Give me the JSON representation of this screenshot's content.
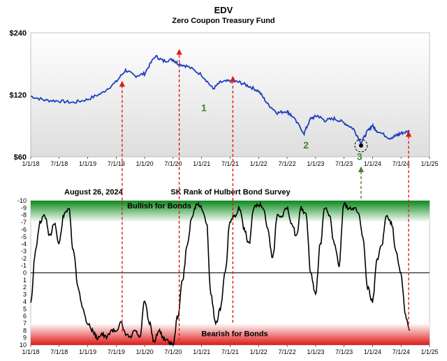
{
  "chart_data": [
    {
      "type": "line",
      "title": "EDV",
      "subtitle": "Zero Coupon Treasury Fund",
      "y_scale": "log",
      "ylim": [
        60,
        240
      ],
      "y_ticks": [
        "$240",
        "$120",
        "$60"
      ],
      "y_tick_values": [
        240,
        120,
        60
      ],
      "x_ticks": [
        "1/1/18",
        "7/1/18",
        "1/1/19",
        "7/1/19",
        "1/1/20",
        "7/1/20",
        "1/1/21",
        "7/1/21",
        "1/1/22",
        "7/1/22",
        "1/1/23",
        "7/1/23",
        "1/1/24",
        "7/1/24",
        "1/1/25"
      ],
      "series": [
        {
          "color": "#1f3fbf",
          "x": [
            "2018-01-01",
            "2018-04-01",
            "2018-07-01",
            "2018-10-01",
            "2019-01-01",
            "2019-04-01",
            "2019-07-01",
            "2019-09-01",
            "2019-11-01",
            "2020-01-01",
            "2020-03-10",
            "2020-05-01",
            "2020-07-01",
            "2020-08-01",
            "2020-10-01",
            "2021-01-01",
            "2021-03-15",
            "2021-05-01",
            "2021-07-01",
            "2021-09-01",
            "2021-11-01",
            "2022-01-01",
            "2022-03-01",
            "2022-05-01",
            "2022-07-01",
            "2022-08-01",
            "2022-10-20",
            "2022-12-01",
            "2023-01-15",
            "2023-03-01",
            "2023-05-01",
            "2023-07-01",
            "2023-09-01",
            "2023-10-20",
            "2023-12-01",
            "2023-12-31",
            "2024-02-01",
            "2024-04-20",
            "2024-06-01",
            "2024-07-01",
            "2024-08-26"
          ],
          "y": [
            118,
            113,
            112,
            110,
            114,
            122,
            138,
            158,
            148,
            152,
            185,
            175,
            178,
            170,
            165,
            150,
            128,
            138,
            140,
            138,
            132,
            125,
            108,
            98,
            100,
            95,
            78,
            92,
            95,
            90,
            92,
            88,
            82,
            70,
            80,
            85,
            80,
            74,
            76,
            78,
            80
          ]
        }
      ],
      "annotations": [
        {
          "text": "1",
          "x": "2021-01-15",
          "y": 100
        },
        {
          "text": "2",
          "x": "2022-11-01",
          "y": 66
        },
        {
          "text": "3",
          "x": "2023-10-10",
          "y": 58
        }
      ],
      "highlight_point": {
        "x": "2023-10-20",
        "y": 68
      }
    },
    {
      "type": "line",
      "title": "SK Rank of Hulbert Bond Survey",
      "date_label": "August 26, 2024",
      "ylim": [
        -10,
        10
      ],
      "y_inverted": true,
      "y_ticks": [
        "-10",
        "-9",
        "-8",
        "-7",
        "-6",
        "-5",
        "-4",
        "-3",
        "-2",
        "-1",
        "0",
        "1",
        "2",
        "3",
        "4",
        "5",
        "6",
        "7",
        "8",
        "9",
        "10"
      ],
      "x_ticks": [
        "1/1/18",
        "7/1/18",
        "1/1/19",
        "7/1/19",
        "1/1/20",
        "7/1/20",
        "1/1/21",
        "7/1/21",
        "1/1/22",
        "7/1/22",
        "1/1/23",
        "7/1/23",
        "1/1/24",
        "7/1/24",
        "1/1/25"
      ],
      "zones": [
        {
          "label": "Bullish for Bonds",
          "from": -10,
          "to": -7,
          "color": "#0a8a1a"
        },
        {
          "label": "Bearish for Bonds",
          "from": 7,
          "to": 10,
          "color": "#e01818"
        }
      ],
      "series": [
        {
          "color": "#000000",
          "x": [
            "2018-01-01",
            "2018-02-01",
            "2018-03-01",
            "2018-04-01",
            "2018-05-01",
            "2018-06-01",
            "2018-07-01",
            "2018-08-01",
            "2018-09-01",
            "2018-10-01",
            "2018-11-01",
            "2018-12-01",
            "2019-01-01",
            "2019-02-01",
            "2019-03-01",
            "2019-04-01",
            "2019-05-01",
            "2019-06-01",
            "2019-07-01",
            "2019-08-01",
            "2019-09-01",
            "2019-10-01",
            "2019-11-01",
            "2019-12-01",
            "2020-01-01",
            "2020-02-01",
            "2020-03-01",
            "2020-04-01",
            "2020-05-01",
            "2020-06-01",
            "2020-07-01",
            "2020-08-01",
            "2020-09-01",
            "2020-10-01",
            "2020-11-01",
            "2020-12-01",
            "2021-01-01",
            "2021-02-01",
            "2021-03-01",
            "2021-04-01",
            "2021-05-01",
            "2021-06-01",
            "2021-07-01",
            "2021-08-01",
            "2021-09-01",
            "2021-10-01",
            "2021-11-01",
            "2021-12-01",
            "2022-01-01",
            "2022-02-01",
            "2022-03-01",
            "2022-04-01",
            "2022-05-01",
            "2022-06-01",
            "2022-07-01",
            "2022-08-01",
            "2022-09-01",
            "2022-10-01",
            "2022-11-01",
            "2022-12-01",
            "2023-01-01",
            "2023-02-01",
            "2023-03-01",
            "2023-04-01",
            "2023-05-01",
            "2023-06-01",
            "2023-07-01",
            "2023-08-01",
            "2023-09-01",
            "2023-10-01",
            "2023-11-01",
            "2023-12-01",
            "2024-01-01",
            "2024-02-01",
            "2024-03-01",
            "2024-04-01",
            "2024-05-01",
            "2024-06-01",
            "2024-07-01",
            "2024-08-01",
            "2024-08-26"
          ],
          "y": [
            4,
            -3,
            -7,
            -8,
            -5,
            -7,
            -4,
            -8,
            -9,
            -3,
            2,
            5,
            7,
            8,
            9,
            8.5,
            9,
            8,
            8,
            7,
            8.5,
            9,
            8,
            9,
            4,
            7,
            9.5,
            8,
            9,
            9.5,
            10,
            6,
            1,
            -4,
            -8,
            -9.5,
            -9,
            -7,
            3,
            7,
            5,
            0,
            -7,
            -8,
            -9,
            -6,
            -4,
            -9,
            -9.5,
            -9,
            -6,
            -2,
            -8,
            -8,
            -9,
            -7,
            -5,
            -9,
            -8,
            0,
            3,
            -4,
            -9,
            -8,
            -4,
            -1,
            -9.5,
            -9,
            -9,
            -8.5,
            -5,
            2,
            4,
            -2,
            -4,
            -8,
            -7,
            -3,
            0,
            6,
            8
          ]
        }
      ]
    }
  ]
}
